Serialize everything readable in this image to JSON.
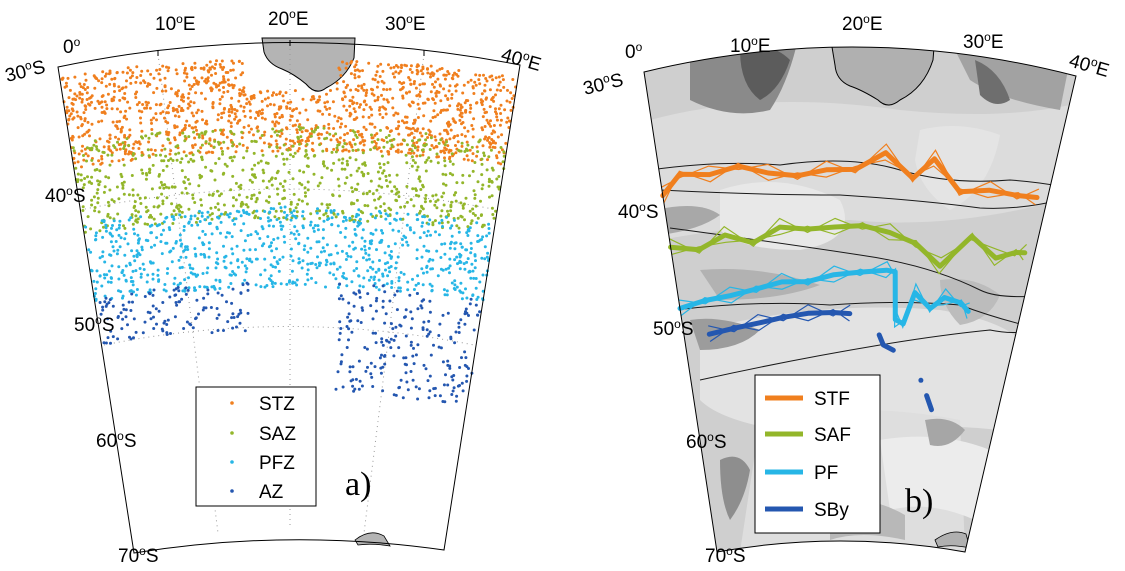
{
  "figure": {
    "panels": [
      {
        "id": "a",
        "panel_label": "a)",
        "map_type": "scatter",
        "lon_range_deg": [
          0,
          40
        ],
        "lat_range_deg": [
          -70,
          -30
        ],
        "lon_tick_labels": [
          "0",
          "10",
          "20",
          "30",
          "40"
        ],
        "lon_suffix": "E",
        "lat_tick_labels": [
          "30",
          "40",
          "50",
          "60",
          "70"
        ],
        "lat_suffix": "S",
        "degree_symbol": "o",
        "legend_position": "lower-center",
        "legend": [
          {
            "label": "STZ",
            "color": "#f07f1e"
          },
          {
            "label": "SAZ",
            "color": "#93b62a"
          },
          {
            "label": "PFZ",
            "color": "#27b6e6"
          },
          {
            "label": "AZ",
            "color": "#2457b0"
          }
        ],
        "zones_lat_deg": [
          {
            "name": "STZ",
            "lat_from": -31,
            "lat_to": -38.5
          },
          {
            "name": "SAZ",
            "lat_from": -36.5,
            "lat_to": -44
          },
          {
            "name": "PFZ",
            "lat_from": -43,
            "lat_to": -49.5
          },
          {
            "name": "AZ",
            "lat_from": -49,
            "lat_to": -58
          }
        ]
      },
      {
        "id": "b",
        "panel_label": "b)",
        "map_type": "line",
        "background": "bathymetry grayscale",
        "lon_tick_labels": [
          "0",
          "10",
          "20",
          "30",
          "40"
        ],
        "lon_suffix": "E",
        "lat_tick_labels": [
          "30",
          "40",
          "50",
          "60",
          "70"
        ],
        "lat_suffix": "S",
        "degree_symbol": "o",
        "legend_position": "lower-left",
        "legend": [
          {
            "label": "STF",
            "color": "#f07f1e"
          },
          {
            "label": "SAF",
            "color": "#93b62a"
          },
          {
            "label": "PF",
            "color": "#27b6e6"
          },
          {
            "label": "SBy",
            "color": "#2457b0"
          }
        ]
      }
    ]
  },
  "chart_data": [
    {
      "type": "scatter",
      "panel": "a",
      "x_axis": "longitude (deg E)",
      "y_axis": "latitude (deg)",
      "xlim": [
        0,
        40
      ],
      "ylim": [
        -70,
        -30
      ],
      "series": [
        {
          "name": "STZ",
          "lat_range": [
            -38.5,
            -31
          ],
          "lon_range": [
            0,
            40
          ]
        },
        {
          "name": "SAZ",
          "lat_range": [
            -44,
            -36.5
          ],
          "lon_range": [
            0,
            40
          ]
        },
        {
          "name": "PFZ",
          "lat_range": [
            -49.5,
            -43
          ],
          "lon_range": [
            0,
            40
          ]
        },
        {
          "name": "AZ",
          "lat_range": [
            -58,
            -49
          ],
          "lon_range": [
            0,
            40
          ]
        }
      ]
    },
    {
      "type": "line",
      "panel": "b",
      "x_axis": "longitude (deg E)",
      "y_axis": "latitude (deg)",
      "xlim": [
        0,
        40
      ],
      "ylim": [
        -70,
        -30
      ],
      "series": [
        {
          "name": "STF",
          "lon": [
            0,
            2,
            5,
            8,
            11,
            14,
            17,
            20,
            23,
            26,
            28,
            31,
            34,
            37,
            39
          ],
          "lat": [
            -40.3,
            -38.8,
            -39.2,
            -38.8,
            -39.6,
            -40.0,
            -39.6,
            -39.6,
            -38.2,
            -40.2,
            -38.5,
            -41.0,
            -40.6,
            -40.7,
            -40.6
          ]
        },
        {
          "name": "SAF",
          "lon": [
            0,
            3,
            6,
            9,
            12,
            15,
            18,
            21,
            24,
            27,
            30,
            33,
            36,
            38,
            39
          ],
          "lat": [
            -44.6,
            -45.2,
            -44.3,
            -45.2,
            -44.1,
            -44.4,
            -44.3,
            -44.2,
            -44.7,
            -45.5,
            -47.2,
            -44.5,
            -46.0,
            -45.3,
            -45.2
          ]
        },
        {
          "name": "PF",
          "lon": [
            0,
            3,
            6,
            9,
            12,
            15,
            18,
            21,
            24,
            25,
            25.5,
            26.5,
            27.5,
            29.5,
            31,
            33,
            34
          ],
          "lat": [
            -49.7,
            -49.4,
            -49.3,
            -49.0,
            -48.6,
            -48.7,
            -48.2,
            -48.0,
            -47.8,
            -47.9,
            -51.8,
            -52.1,
            -49.5,
            -50.7,
            -49.7,
            -50.0,
            -50.6
          ]
        },
        {
          "name": "SBy",
          "lon": [
            3,
            6,
            9,
            12,
            15,
            18,
            20
          ],
          "lat": [
            -52.2,
            -52.0,
            -51.8,
            -51.5,
            -51.3,
            -51.3,
            -51.4
          ]
        },
        {
          "name": "SBy",
          "lon": [
            23.7,
            24.3,
            25.6
          ],
          "lat": [
            -53.1,
            -53.9,
            -54.3
          ]
        },
        {
          "name": "SBy",
          "lon": [
            30.5,
            31.4
          ],
          "lat": [
            -57.8,
            -58.9
          ]
        }
      ]
    }
  ]
}
